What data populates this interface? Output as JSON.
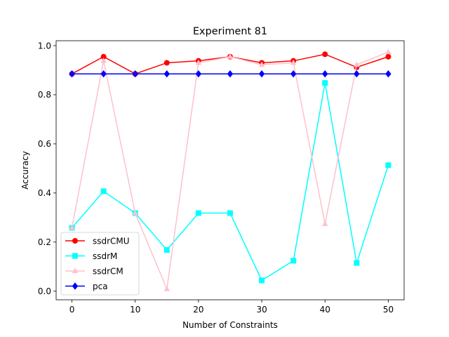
{
  "chart_data": {
    "type": "line",
    "title": "Experiment 81",
    "xlabel": "Number of Constraints",
    "ylabel": "Accuracy",
    "x": [
      0,
      5,
      10,
      15,
      20,
      25,
      30,
      35,
      40,
      45,
      50
    ],
    "xlim": [
      -2.5,
      52.5
    ],
    "ylim": [
      -0.035,
      1.02
    ],
    "xticks": [
      0,
      10,
      20,
      30,
      40,
      50
    ],
    "yticks": [
      0.0,
      0.2,
      0.4,
      0.6,
      0.8,
      1.0
    ],
    "xtick_labels": [
      "0",
      "10",
      "20",
      "30",
      "40",
      "50"
    ],
    "ytick_labels": [
      "0.0",
      "0.2",
      "0.4",
      "0.6",
      "0.8",
      "1.0"
    ],
    "legend_position": "lower-left",
    "series": [
      {
        "name": "ssdrCMU",
        "color": "#ff0000",
        "marker": "circle",
        "values": [
          0.885,
          0.955,
          0.885,
          0.93,
          0.938,
          0.955,
          0.93,
          0.938,
          0.965,
          0.912,
          0.955
        ]
      },
      {
        "name": "ssdrM",
        "color": "#00ffff",
        "marker": "square",
        "values": [
          0.258,
          0.407,
          0.318,
          0.168,
          0.318,
          0.318,
          0.044,
          0.124,
          0.848,
          0.115,
          0.513
        ]
      },
      {
        "name": "ssdrCM",
        "color": "#ffc0cb",
        "marker": "triangle",
        "values": [
          0.258,
          0.938,
          0.318,
          0.009,
          0.93,
          0.955,
          0.922,
          0.93,
          0.274,
          0.922,
          0.974
        ]
      },
      {
        "name": "pca",
        "color": "#0000ff",
        "marker": "diamond",
        "values": [
          0.885,
          0.885,
          0.885,
          0.885,
          0.885,
          0.885,
          0.885,
          0.885,
          0.885,
          0.885,
          0.885
        ]
      }
    ]
  }
}
